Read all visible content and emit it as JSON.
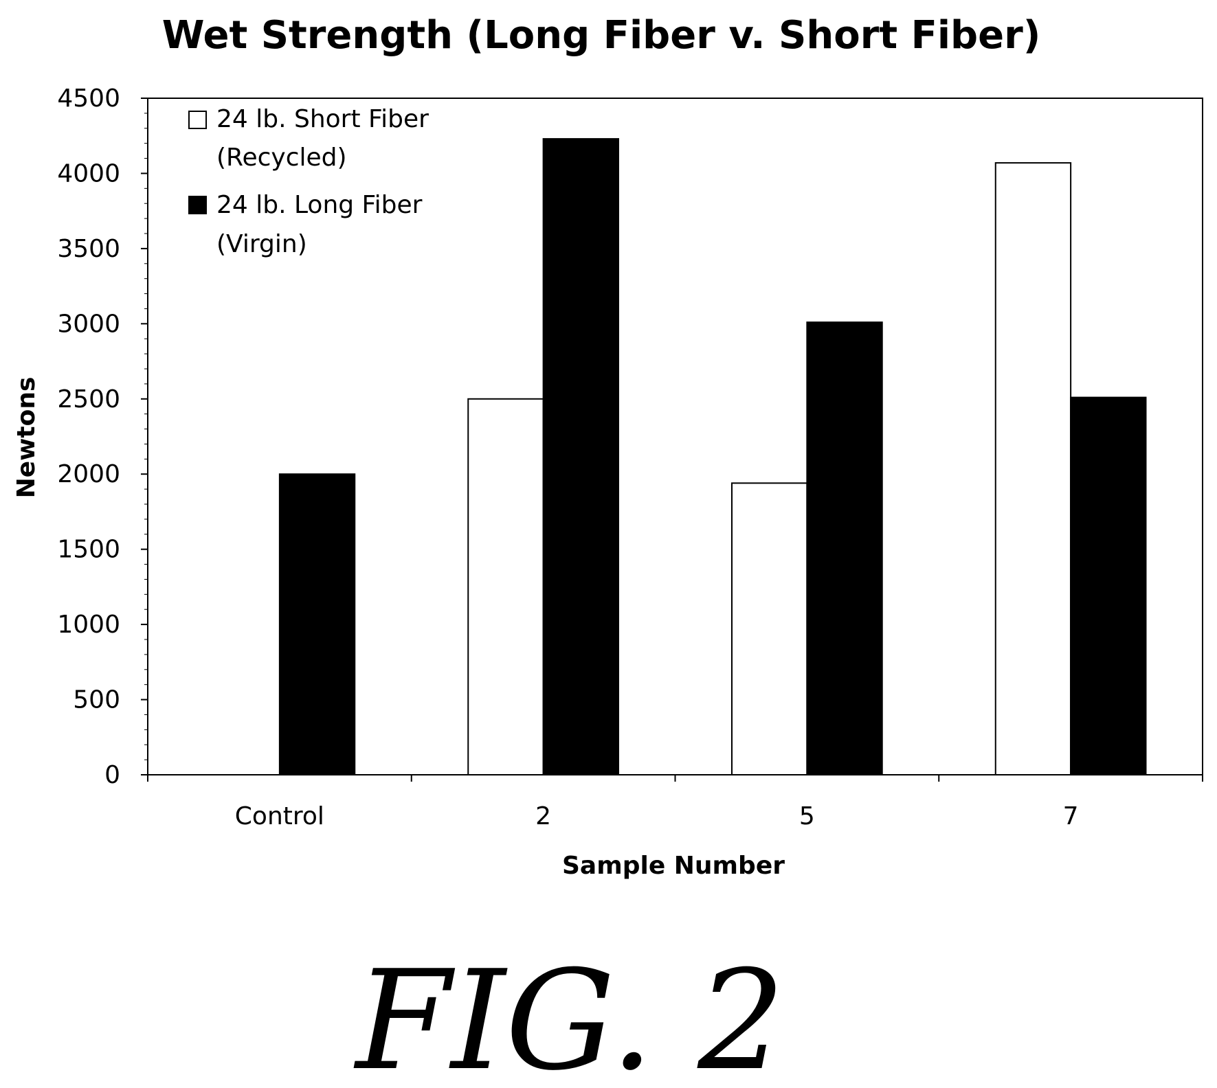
{
  "chart_data": {
    "type": "bar",
    "title": "Wet Strength (Long Fiber v. Short Fiber)",
    "xlabel": "Sample Number",
    "ylabel": "Newtons",
    "categories": [
      "Control",
      "2",
      "5",
      "7"
    ],
    "ylim": [
      0,
      4500
    ],
    "yticks": [
      0,
      500,
      1000,
      1500,
      2000,
      2500,
      3000,
      3500,
      4000,
      4500
    ],
    "grid": false,
    "legend_position": "top-left",
    "series": [
      {
        "name_line1": "24 lb. Short Fiber",
        "name_line2": "(Recycled)",
        "color": "#ffffff",
        "values": [
          null,
          2500,
          1940,
          4070
        ]
      },
      {
        "name_line1": "24 lb. Long Fiber",
        "name_line2": "(Virgin)",
        "color": "#000000",
        "values": [
          2000,
          4230,
          3010,
          2510
        ]
      }
    ]
  },
  "caption": "FIG. 2"
}
